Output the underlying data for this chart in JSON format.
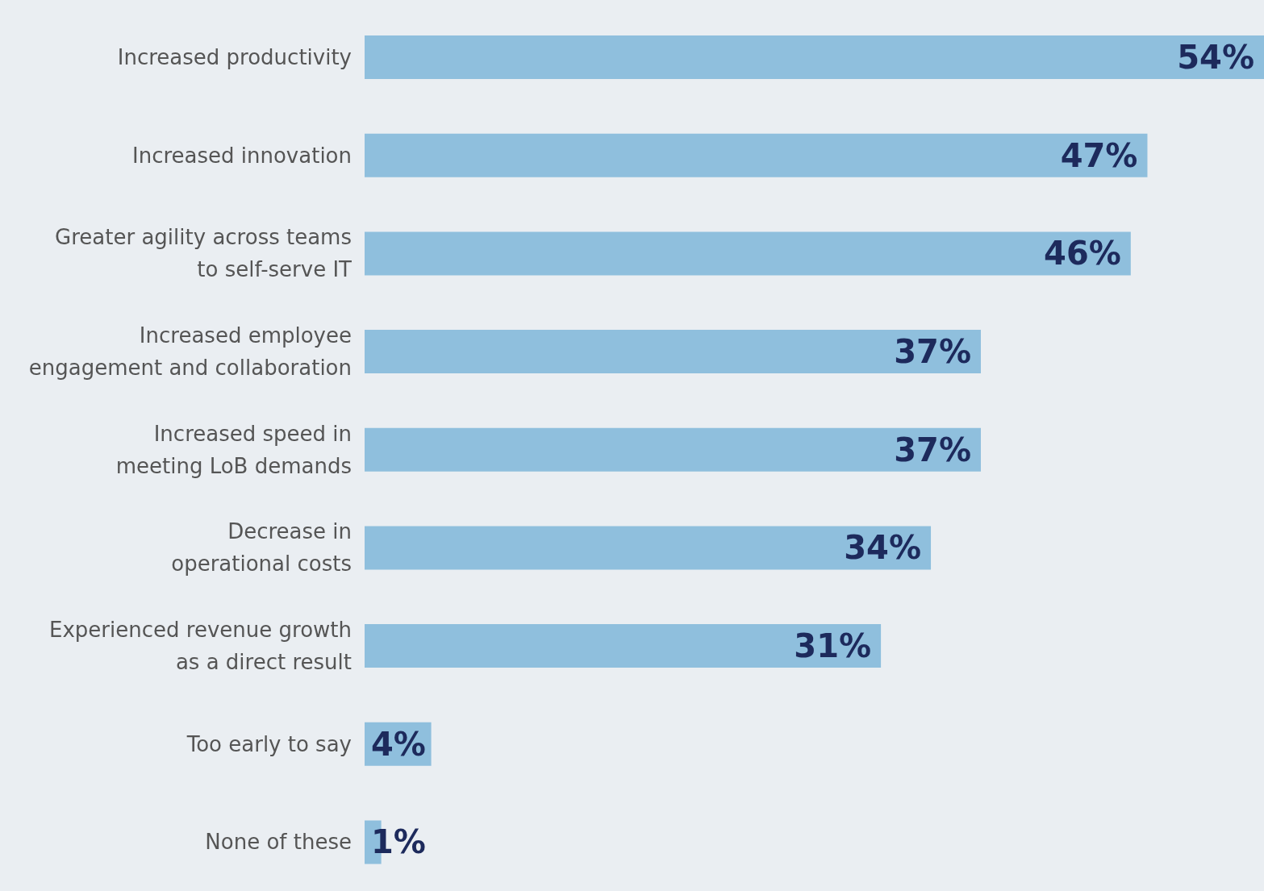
{
  "chart_data": {
    "type": "bar",
    "orientation": "horizontal",
    "categories": [
      "Increased productivity",
      "Increased innovation",
      "Greater agility across teams\nto self-serve IT",
      "Increased employee\nengagement and collaboration",
      "Increased speed in\nmeeting LoB demands",
      "Decrease in\noperational costs",
      "Experienced revenue growth\nas a direct result",
      "Too early to say",
      "None of these"
    ],
    "values": [
      54,
      47,
      46,
      37,
      37,
      34,
      31,
      4,
      1
    ],
    "value_labels": [
      "54%",
      "47%",
      "46%",
      "37%",
      "37%",
      "34%",
      "31%",
      "4%",
      "1%"
    ],
    "color": "#8fbfdd"
  }
}
